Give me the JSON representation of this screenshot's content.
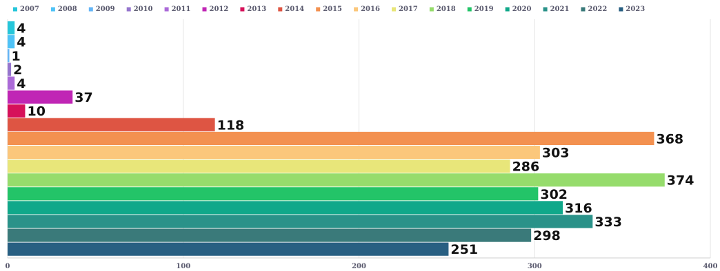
{
  "chart_data": {
    "type": "bar",
    "orientation": "horizontal",
    "title": "",
    "xlabel": "",
    "ylabel": "",
    "xlim": [
      0,
      400
    ],
    "x_ticks": [
      0,
      100,
      200,
      300,
      400
    ],
    "grid": true,
    "legend_position": "top",
    "series": [
      {
        "name": "2007",
        "value": 4,
        "color": "#26c6da"
      },
      {
        "name": "2008",
        "value": 4,
        "color": "#4fc3f7"
      },
      {
        "name": "2009",
        "value": 1,
        "color": "#64b5f6"
      },
      {
        "name": "2010",
        "value": 2,
        "color": "#9575cd"
      },
      {
        "name": "2011",
        "value": 4,
        "color": "#ab6ad8"
      },
      {
        "name": "2012",
        "value": 37,
        "color": "#c026b5"
      },
      {
        "name": "2013",
        "value": 10,
        "color": "#d6115a"
      },
      {
        "name": "2014",
        "value": 118,
        "color": "#de5543"
      },
      {
        "name": "2015",
        "value": 368,
        "color": "#f39150"
      },
      {
        "name": "2016",
        "value": 303,
        "color": "#fbc77b"
      },
      {
        "name": "2017",
        "value": 286,
        "color": "#e8e67a"
      },
      {
        "name": "2018",
        "value": 374,
        "color": "#96dc6c"
      },
      {
        "name": "2019",
        "value": 302,
        "color": "#23c468"
      },
      {
        "name": "2020",
        "value": 316,
        "color": "#10a88a"
      },
      {
        "name": "2021",
        "value": 333,
        "color": "#2a9289"
      },
      {
        "name": "2022",
        "value": 298,
        "color": "#3a7a7a"
      },
      {
        "name": "2023",
        "value": 251,
        "color": "#285f82"
      }
    ]
  }
}
